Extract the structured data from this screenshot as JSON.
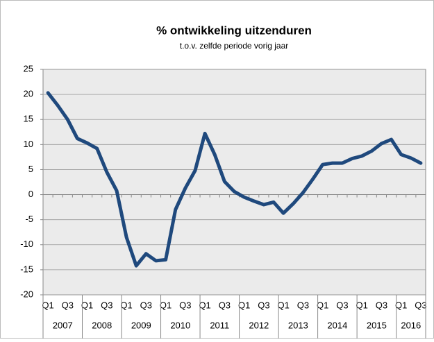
{
  "chart_data": {
    "type": "line",
    "title": "% ontwikkeling uitzenduren",
    "subtitle": "t.o.v. zelfde periode vorig jaar",
    "categories": [
      "Q1",
      null,
      "Q3",
      null,
      "Q1",
      null,
      "Q3",
      null,
      "Q1",
      null,
      "Q3",
      null,
      "Q1",
      null,
      "Q3",
      null,
      "Q1",
      null,
      "Q3",
      null,
      "Q1",
      null,
      "Q3",
      null,
      "Q1",
      null,
      "Q3",
      null,
      "Q1",
      null,
      "Q3",
      null,
      "Q1",
      null,
      "Q3",
      null,
      "Q1",
      null,
      "Q3"
    ],
    "category_groups": [
      "2007",
      "2008",
      "2009",
      "2010",
      "2011",
      "2012",
      "2013",
      "2014",
      "2015",
      "2016"
    ],
    "series": [
      {
        "color": "#1f497d",
        "values": [
          20.3,
          17.8,
          15,
          11.2,
          10.3,
          9.2,
          4.5,
          0.8,
          -8.5,
          -14.2,
          -11.8,
          -13.2,
          -13,
          -3,
          1.3,
          4.8,
          12.2,
          8,
          2.6,
          0.6,
          -0.5,
          -1.3,
          -2,
          -1.5,
          -3.7,
          -1.8,
          0.4,
          3.1,
          6,
          6.3,
          6.3,
          7.2,
          7.7,
          8.7,
          10.2,
          11,
          8,
          7.3,
          6.3
        ]
      }
    ],
    "ylim": [
      -20,
      25
    ],
    "yticks": [
      -20,
      -15,
      -10,
      -5,
      0,
      5,
      10,
      15,
      20,
      25
    ],
    "grid": true
  }
}
